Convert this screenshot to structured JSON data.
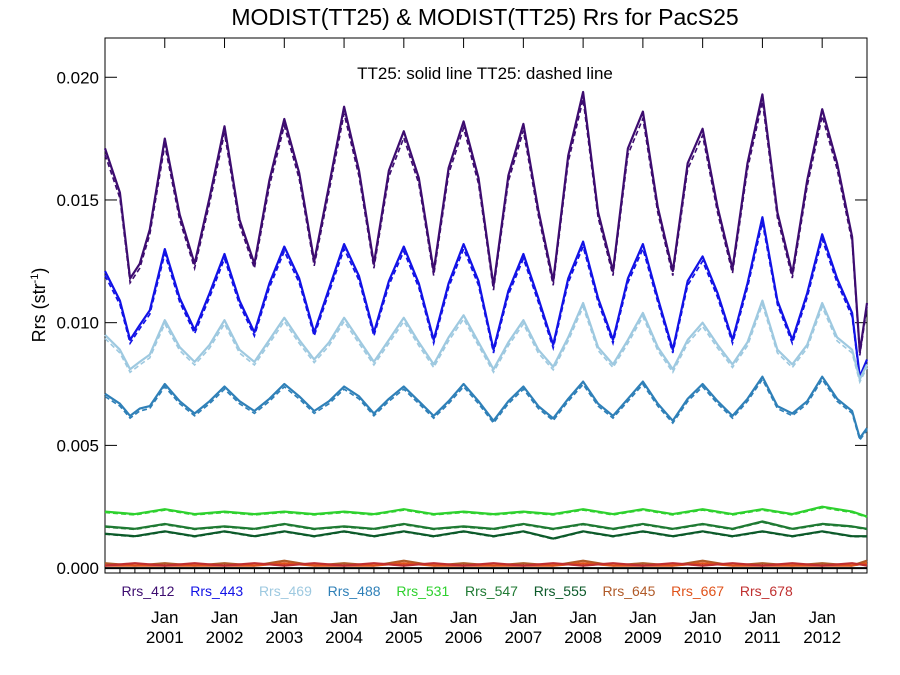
{
  "chart_data": {
    "type": "line",
    "title": "MODIST(TT25) & MODIST(TT25)  Rrs for PacS25",
    "ylabel": "Rrs (str",
    "ylabel_sup": "-1",
    "ylabel_close": ")",
    "annotation": "TT25: solid line   TT25: dashed line",
    "ylim": [
      -0.0002,
      0.0216
    ],
    "xlim": [
      2000.0,
      2012.75
    ],
    "y_ticks": [
      {
        "value": 0.0,
        "label": "0.000"
      },
      {
        "value": 0.005,
        "label": "0.005"
      },
      {
        "value": 0.01,
        "label": "0.010"
      },
      {
        "value": 0.015,
        "label": "0.015"
      },
      {
        "value": 0.02,
        "label": "0.020"
      }
    ],
    "x_ticks": [
      {
        "value": 2001.0,
        "month": "Jan",
        "year": "2001"
      },
      {
        "value": 2002.0,
        "month": "Jan",
        "year": "2002"
      },
      {
        "value": 2003.0,
        "month": "Jan",
        "year": "2003"
      },
      {
        "value": 2004.0,
        "month": "Jan",
        "year": "2004"
      },
      {
        "value": 2005.0,
        "month": "Jan",
        "year": "2005"
      },
      {
        "value": 2006.0,
        "month": "Jan",
        "year": "2006"
      },
      {
        "value": 2007.0,
        "month": "Jan",
        "year": "2007"
      },
      {
        "value": 2008.0,
        "month": "Jan",
        "year": "2008"
      },
      {
        "value": 2009.0,
        "month": "Jan",
        "year": "2009"
      },
      {
        "value": 2010.0,
        "month": "Jan",
        "year": "2010"
      },
      {
        "value": 2011.0,
        "month": "Jan",
        "year": "2011"
      },
      {
        "value": 2012.0,
        "month": "Jan",
        "year": "2012"
      }
    ],
    "series": [
      {
        "name": "Rrs_412",
        "color": "#3d0c70",
        "x": [
          2000.0,
          2000.25,
          2000.42,
          2000.58,
          2000.75,
          2001.0,
          2001.25,
          2001.5,
          2001.75,
          2002.0,
          2002.25,
          2002.5,
          2002.75,
          2003.0,
          2003.25,
          2003.5,
          2003.75,
          2004.0,
          2004.25,
          2004.5,
          2004.75,
          2005.0,
          2005.25,
          2005.5,
          2005.75,
          2006.0,
          2006.25,
          2006.5,
          2006.75,
          2007.0,
          2007.25,
          2007.5,
          2007.75,
          2008.0,
          2008.25,
          2008.5,
          2008.75,
          2009.0,
          2009.25,
          2009.5,
          2009.75,
          2010.0,
          2010.25,
          2010.5,
          2010.75,
          2011.0,
          2011.25,
          2011.5,
          2011.75,
          2012.0,
          2012.25,
          2012.5,
          2012.63,
          2012.75
        ],
        "y": [
          0.0171,
          0.0153,
          0.0118,
          0.0124,
          0.0138,
          0.0175,
          0.0144,
          0.0124,
          0.0151,
          0.018,
          0.0142,
          0.0124,
          0.0158,
          0.0183,
          0.0161,
          0.0125,
          0.0156,
          0.0188,
          0.0162,
          0.0124,
          0.0162,
          0.0178,
          0.0159,
          0.0121,
          0.0163,
          0.0182,
          0.0159,
          0.0115,
          0.016,
          0.0181,
          0.0146,
          0.0117,
          0.0168,
          0.0194,
          0.0145,
          0.0121,
          0.0171,
          0.0186,
          0.0147,
          0.0121,
          0.0165,
          0.0179,
          0.0147,
          0.0122,
          0.0165,
          0.0193,
          0.0145,
          0.012,
          0.0158,
          0.0187,
          0.0165,
          0.0135,
          0.0088,
          0.0108
        ]
      },
      {
        "name": "Rrs_443",
        "color": "#1212e6",
        "x": [
          2000.0,
          2000.25,
          2000.42,
          2000.58,
          2000.75,
          2001.0,
          2001.25,
          2001.5,
          2001.75,
          2002.0,
          2002.25,
          2002.5,
          2002.75,
          2003.0,
          2003.25,
          2003.5,
          2003.75,
          2004.0,
          2004.25,
          2004.5,
          2004.75,
          2005.0,
          2005.25,
          2005.5,
          2005.75,
          2006.0,
          2006.25,
          2006.5,
          2006.75,
          2007.0,
          2007.25,
          2007.5,
          2007.75,
          2008.0,
          2008.25,
          2008.5,
          2008.75,
          2009.0,
          2009.25,
          2009.5,
          2009.75,
          2010.0,
          2010.25,
          2010.5,
          2010.75,
          2011.0,
          2011.25,
          2011.5,
          2011.75,
          2012.0,
          2012.25,
          2012.5,
          2012.63,
          2012.75
        ],
        "y": [
          0.0121,
          0.0109,
          0.0093,
          0.0099,
          0.0105,
          0.013,
          0.011,
          0.0097,
          0.0112,
          0.0128,
          0.0109,
          0.0096,
          0.0116,
          0.0131,
          0.0118,
          0.0096,
          0.0114,
          0.0132,
          0.0119,
          0.0096,
          0.0117,
          0.0131,
          0.0116,
          0.0093,
          0.0116,
          0.0132,
          0.0117,
          0.0089,
          0.0113,
          0.0128,
          0.011,
          0.0091,
          0.0118,
          0.0133,
          0.011,
          0.0093,
          0.0118,
          0.0132,
          0.011,
          0.0089,
          0.0117,
          0.0127,
          0.0112,
          0.0093,
          0.0116,
          0.0143,
          0.0109,
          0.0093,
          0.0112,
          0.0136,
          0.0118,
          0.0104,
          0.0078,
          0.0085
        ]
      },
      {
        "name": "Rrs_469",
        "color": "#9ec9e0",
        "x": [
          2000.0,
          2000.25,
          2000.42,
          2000.58,
          2000.75,
          2001.0,
          2001.25,
          2001.5,
          2001.75,
          2002.0,
          2002.25,
          2002.5,
          2002.75,
          2003.0,
          2003.25,
          2003.5,
          2003.75,
          2004.0,
          2004.25,
          2004.5,
          2004.75,
          2005.0,
          2005.25,
          2005.5,
          2005.75,
          2006.0,
          2006.25,
          2006.5,
          2006.75,
          2007.0,
          2007.25,
          2007.5,
          2007.75,
          2008.0,
          2008.25,
          2008.5,
          2008.75,
          2009.0,
          2009.25,
          2009.5,
          2009.75,
          2010.0,
          2010.25,
          2010.5,
          2010.75,
          2011.0,
          2011.25,
          2011.5,
          2011.75,
          2012.0,
          2012.25,
          2012.5,
          2012.63,
          2012.75
        ],
        "y": [
          0.0095,
          0.0089,
          0.0081,
          0.0084,
          0.0087,
          0.0101,
          0.009,
          0.0084,
          0.0091,
          0.0101,
          0.0089,
          0.0084,
          0.0093,
          0.0102,
          0.0093,
          0.0085,
          0.0092,
          0.0102,
          0.0093,
          0.0084,
          0.0093,
          0.0102,
          0.0092,
          0.0083,
          0.0094,
          0.0103,
          0.0092,
          0.0081,
          0.0092,
          0.0101,
          0.0089,
          0.0082,
          0.0094,
          0.0108,
          0.009,
          0.0083,
          0.0093,
          0.0104,
          0.009,
          0.0081,
          0.0093,
          0.01,
          0.0091,
          0.0083,
          0.0092,
          0.0109,
          0.0089,
          0.0083,
          0.0091,
          0.0108,
          0.0094,
          0.0089,
          0.0077,
          0.0083
        ]
      },
      {
        "name": "Rrs_488",
        "color": "#2f80b8",
        "x": [
          2000.0,
          2000.25,
          2000.42,
          2000.58,
          2000.75,
          2001.0,
          2001.25,
          2001.5,
          2001.75,
          2002.0,
          2002.25,
          2002.5,
          2002.75,
          2003.0,
          2003.25,
          2003.5,
          2003.75,
          2004.0,
          2004.25,
          2004.5,
          2004.75,
          2005.0,
          2005.25,
          2005.5,
          2005.75,
          2006.0,
          2006.25,
          2006.5,
          2006.75,
          2007.0,
          2007.25,
          2007.5,
          2007.75,
          2008.0,
          2008.25,
          2008.5,
          2008.75,
          2009.0,
          2009.25,
          2009.5,
          2009.75,
          2010.0,
          2010.25,
          2010.5,
          2010.75,
          2011.0,
          2011.25,
          2011.5,
          2011.75,
          2012.0,
          2012.25,
          2012.5,
          2012.63,
          2012.75
        ],
        "y": [
          0.0071,
          0.0067,
          0.0062,
          0.0065,
          0.0066,
          0.0075,
          0.0068,
          0.0063,
          0.0068,
          0.0074,
          0.0068,
          0.0064,
          0.0069,
          0.0075,
          0.007,
          0.0064,
          0.0068,
          0.0074,
          0.007,
          0.0063,
          0.0069,
          0.0074,
          0.0068,
          0.0062,
          0.0068,
          0.0075,
          0.0068,
          0.006,
          0.0068,
          0.0074,
          0.0066,
          0.0061,
          0.0069,
          0.0076,
          0.0067,
          0.0062,
          0.0069,
          0.0076,
          0.0067,
          0.006,
          0.0069,
          0.0075,
          0.0068,
          0.0062,
          0.0069,
          0.0078,
          0.0066,
          0.0063,
          0.0068,
          0.0078,
          0.0069,
          0.0064,
          0.0053,
          0.0057
        ]
      },
      {
        "name": "Rrs_531",
        "color": "#2ed12e",
        "x": [
          2000.0,
          2000.5,
          2001.0,
          2001.5,
          2002.0,
          2002.5,
          2003.0,
          2003.5,
          2004.0,
          2004.5,
          2005.0,
          2005.5,
          2006.0,
          2006.5,
          2007.0,
          2007.5,
          2008.0,
          2008.5,
          2009.0,
          2009.5,
          2010.0,
          2010.5,
          2011.0,
          2011.5,
          2012.0,
          2012.5,
          2012.75
        ],
        "y": [
          0.0023,
          0.0022,
          0.0024,
          0.0022,
          0.0023,
          0.0022,
          0.0023,
          0.0022,
          0.0023,
          0.0022,
          0.0024,
          0.0022,
          0.0023,
          0.0022,
          0.0023,
          0.0022,
          0.0024,
          0.0022,
          0.0024,
          0.0022,
          0.0024,
          0.0022,
          0.0024,
          0.0022,
          0.0025,
          0.0023,
          0.0021
        ]
      },
      {
        "name": "Rrs_547",
        "color": "#1f7a33",
        "x": [
          2000.0,
          2000.5,
          2001.0,
          2001.5,
          2002.0,
          2002.5,
          2003.0,
          2003.5,
          2004.0,
          2004.5,
          2005.0,
          2005.5,
          2006.0,
          2006.5,
          2007.0,
          2007.5,
          2008.0,
          2008.5,
          2009.0,
          2009.5,
          2010.0,
          2010.5,
          2011.0,
          2011.5,
          2012.0,
          2012.5,
          2012.75
        ],
        "y": [
          0.0017,
          0.0016,
          0.0018,
          0.0016,
          0.0017,
          0.0016,
          0.0018,
          0.0016,
          0.0017,
          0.0016,
          0.0018,
          0.0016,
          0.0017,
          0.0016,
          0.0018,
          0.0016,
          0.0018,
          0.0016,
          0.0018,
          0.0016,
          0.0018,
          0.0016,
          0.0019,
          0.0016,
          0.0018,
          0.0017,
          0.0016
        ]
      },
      {
        "name": "Rrs_555",
        "color": "#0c5a2a",
        "x": [
          2000.0,
          2000.5,
          2001.0,
          2001.5,
          2002.0,
          2002.5,
          2003.0,
          2003.5,
          2004.0,
          2004.5,
          2005.0,
          2005.5,
          2006.0,
          2006.5,
          2007.0,
          2007.5,
          2008.0,
          2008.5,
          2009.0,
          2009.5,
          2010.0,
          2010.5,
          2011.0,
          2011.5,
          2012.0,
          2012.5,
          2012.75
        ],
        "y": [
          0.0014,
          0.0013,
          0.0015,
          0.0013,
          0.0015,
          0.0013,
          0.0015,
          0.0013,
          0.0015,
          0.0013,
          0.0015,
          0.0013,
          0.0015,
          0.0013,
          0.0015,
          0.0012,
          0.0015,
          0.0013,
          0.0015,
          0.0013,
          0.0015,
          0.0013,
          0.0015,
          0.0013,
          0.0015,
          0.0013,
          0.0013
        ]
      },
      {
        "name": "Rrs_645",
        "color": "#b05a28",
        "x": [
          2000.0,
          2000.5,
          2001.0,
          2001.5,
          2002.0,
          2002.5,
          2003.0,
          2003.5,
          2004.0,
          2004.5,
          2005.0,
          2005.5,
          2006.0,
          2006.5,
          2007.0,
          2007.5,
          2008.0,
          2008.5,
          2009.0,
          2009.5,
          2010.0,
          2010.5,
          2011.0,
          2011.5,
          2012.0,
          2012.5,
          2012.75
        ],
        "y": [
          0.0002,
          0.0001,
          0.0002,
          0.0001,
          0.0002,
          0.0001,
          0.0003,
          0.0001,
          0.0002,
          0.0001,
          0.0003,
          0.0001,
          0.0002,
          0.0001,
          0.0002,
          0.0001,
          0.0003,
          0.0001,
          0.0002,
          0.0001,
          0.0003,
          0.0001,
          0.0002,
          0.0001,
          0.0002,
          0.0001,
          0.0003
        ]
      },
      {
        "name": "Rrs_667",
        "color": "#e0521a",
        "x": [
          2000.0,
          2000.5,
          2001.0,
          2001.5,
          2002.0,
          2002.5,
          2003.0,
          2003.5,
          2004.0,
          2004.5,
          2005.0,
          2005.5,
          2006.0,
          2006.5,
          2007.0,
          2007.5,
          2008.0,
          2008.5,
          2009.0,
          2009.5,
          2010.0,
          2010.5,
          2011.0,
          2011.5,
          2012.0,
          2012.5,
          2012.75
        ],
        "y": [
          0.0001,
          0.0001,
          0.0001,
          0.0001,
          0.0001,
          0.0001,
          0.0002,
          0.0001,
          0.0001,
          0.0001,
          0.0002,
          0.0001,
          0.0001,
          0.0001,
          0.0001,
          0.0001,
          0.0002,
          0.0001,
          0.0001,
          0.0001,
          0.0002,
          0.0001,
          0.0001,
          0.0001,
          0.0001,
          0.0001,
          0.0002
        ]
      },
      {
        "name": "Rrs_678",
        "color": "#c03030",
        "x": [
          2000.0,
          2000.5,
          2001.0,
          2001.5,
          2002.0,
          2002.5,
          2003.0,
          2003.5,
          2004.0,
          2004.5,
          2005.0,
          2005.5,
          2006.0,
          2006.5,
          2007.0,
          2007.5,
          2008.0,
          2008.5,
          2009.0,
          2009.5,
          2010.0,
          2010.5,
          2011.0,
          2011.5,
          2012.0,
          2012.5,
          2012.75
        ],
        "y": [
          0.0001,
          0.0002,
          0.0001,
          0.0002,
          0.0001,
          0.0002,
          0.0001,
          0.0002,
          0.0001,
          0.0002,
          0.0001,
          0.0002,
          0.0001,
          0.0002,
          0.0001,
          0.0002,
          0.0001,
          0.0002,
          0.0001,
          0.0002,
          0.0001,
          0.0002,
          0.0001,
          0.0002,
          0.0001,
          0.0002,
          0.0001
        ]
      }
    ]
  }
}
